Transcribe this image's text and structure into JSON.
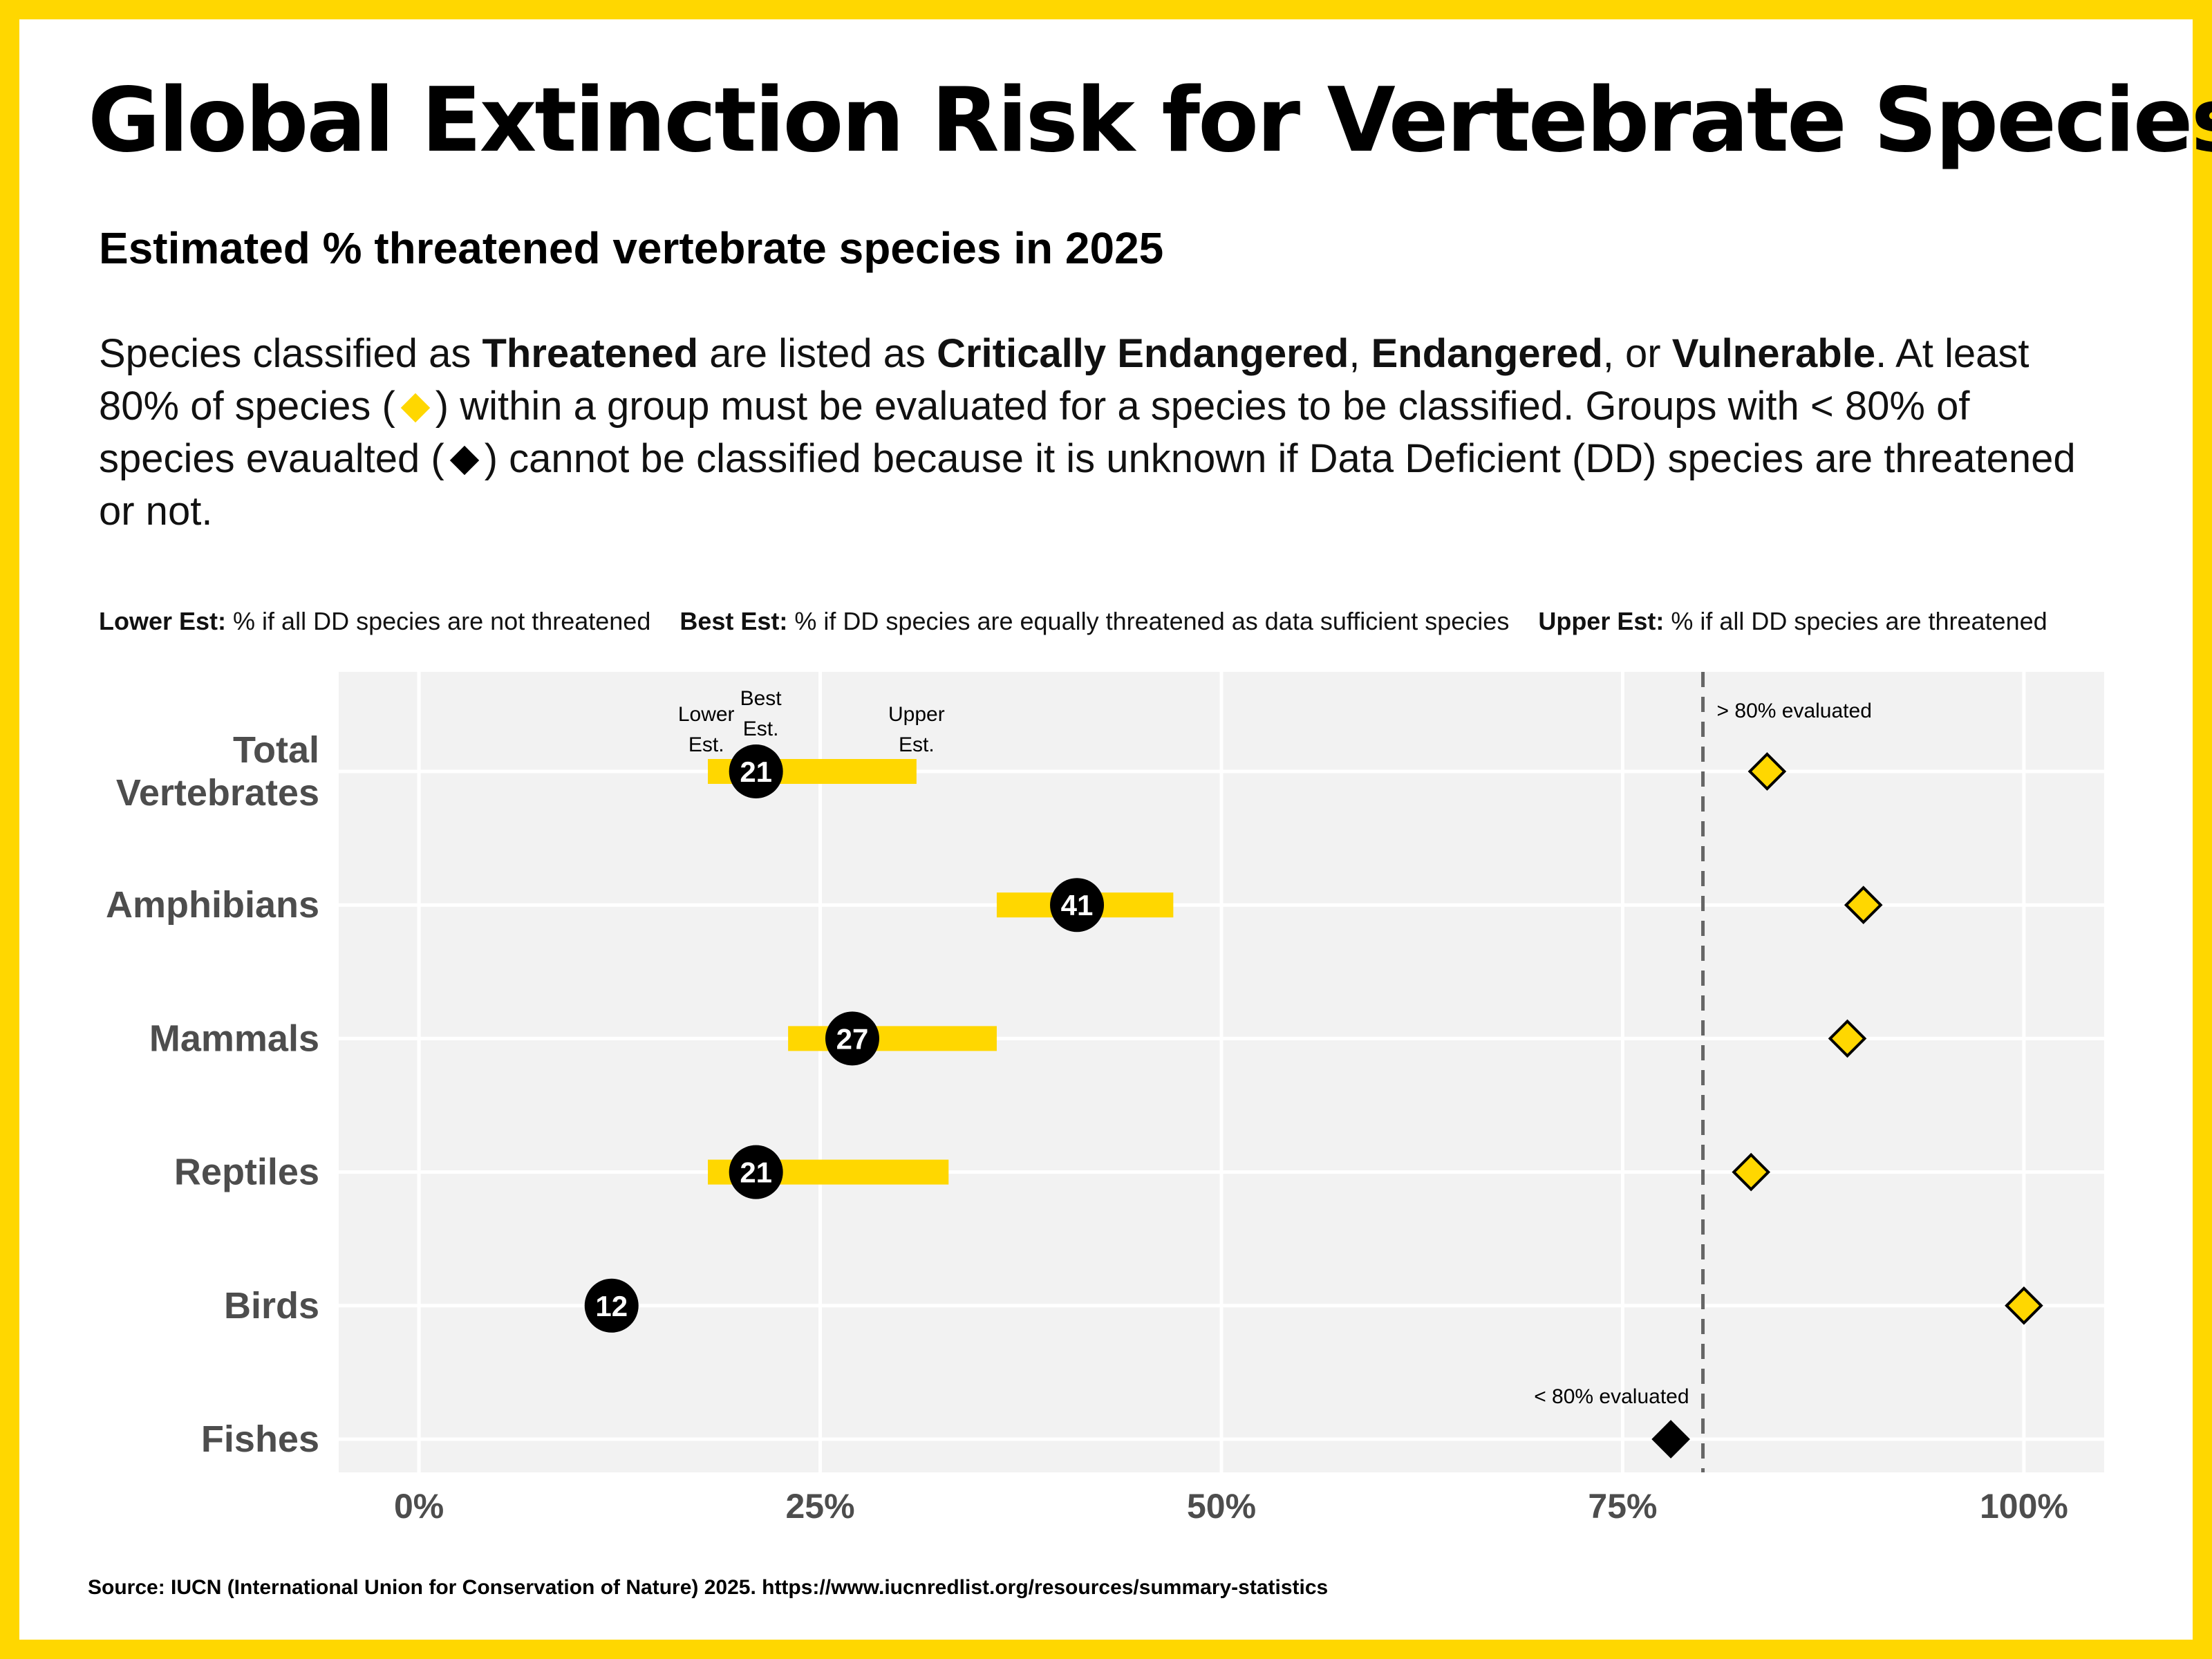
{
  "title": "Global Extinction Risk for Vertebrate Species",
  "subtitle": "Estimated % threatened vertebrate species in 2025",
  "description": {
    "p1": "Species classified as ",
    "threatened": "Threatened",
    "p2": " are listed as ",
    "critically_endangered": "Critically Endangered",
    "sep1": ", ",
    "endangered": "Endangered",
    "sep2": ", or ",
    "vulnerable": "Vulnerable",
    "p3": ". At least 80% of species (",
    "p4": ") within a group must be evaluated for a species to be classified. Groups with < 80% of species evaualted (",
    "p5": ") cannot be classified because it is unknown if Data Deficient (DD) species are threatened or not."
  },
  "legend": {
    "lower_label": "Lower Est:",
    "lower_text": " % if all DD species are not threatened",
    "best_label": "Best Est:",
    "best_text": " % if DD species are equally threatened as data sufficient species",
    "upper_label": "Upper Est:",
    "upper_text": " % if all DD species are threatened"
  },
  "source": "Source: IUCN (International Union for Conservation of Nature) 2025. https://www.iucnredlist.org/resources/summary-statistics",
  "colors": {
    "accent": "#FFD700",
    "panel": "#F2F2F2",
    "point": "#000000",
    "axis_text": "#4D4D4D",
    "threshold_line": "#666666"
  },
  "chart_data": {
    "type": "dot-range",
    "ylabels": [
      [
        "Total",
        "Vertebrates"
      ],
      [
        "Amphibians"
      ],
      [
        "Mammals"
      ],
      [
        "Reptiles"
      ],
      [
        "Birds"
      ],
      [
        "Fishes"
      ]
    ],
    "series": [
      {
        "name": "Lower Est.",
        "values": [
          18,
          36,
          23,
          18,
          null,
          null
        ]
      },
      {
        "name": "Best Est.",
        "values": [
          21,
          41,
          27,
          21,
          12,
          null
        ]
      },
      {
        "name": "Upper Est.",
        "values": [
          31,
          47,
          36,
          33,
          null,
          null
        ]
      },
      {
        "name": "% evaluated",
        "values": [
          84,
          90,
          89,
          83,
          100,
          78
        ]
      }
    ],
    "best_labels": [
      "21",
      "41",
      "27",
      "21",
      "12",
      ""
    ],
    "xticks": [
      0,
      25,
      50,
      75,
      100
    ],
    "xtick_labels": [
      "0%",
      "25%",
      "50%",
      "75%",
      "100%"
    ],
    "xlim": [
      -5,
      105
    ],
    "threshold": 80,
    "annotations": {
      "lower": [
        "Lower",
        "Est."
      ],
      "best": [
        "Best",
        "Est."
      ],
      "upper": [
        "Upper",
        "Est."
      ],
      "above_threshold": "> 80% evaluated",
      "below_threshold": "< 80% evaluated"
    },
    "grid": true
  }
}
